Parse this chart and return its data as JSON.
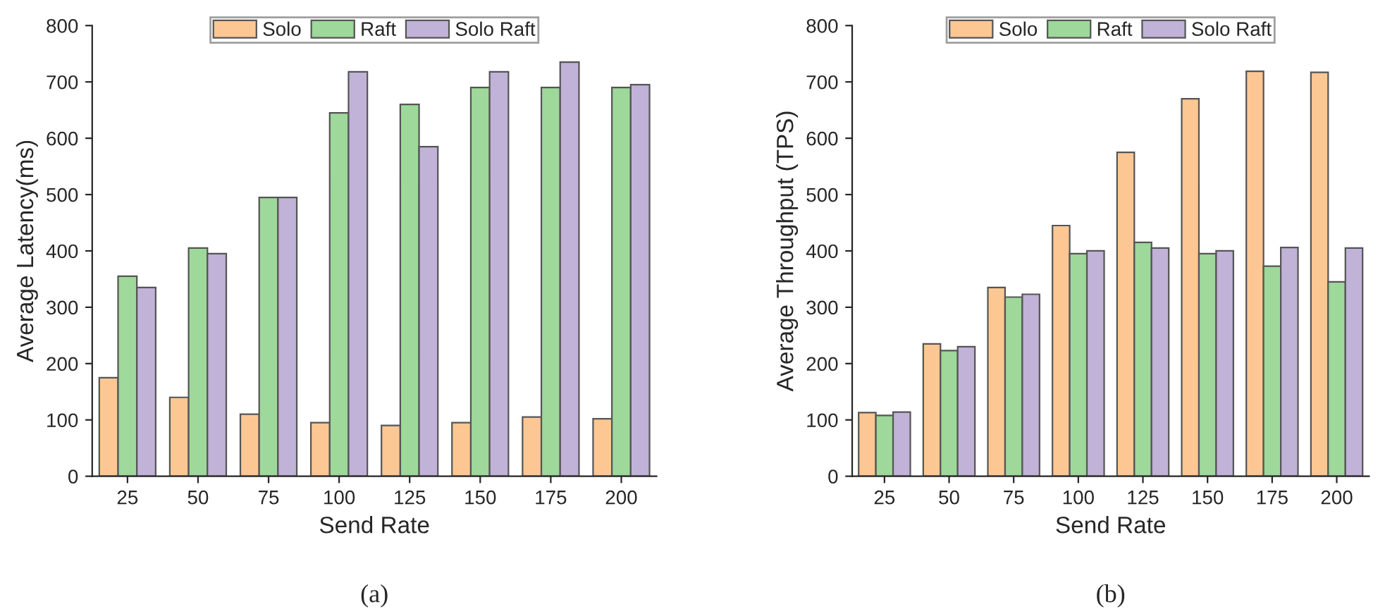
{
  "chart_data": [
    {
      "type": "bar",
      "xlabel": "Send Rate",
      "ylabel": "Average Latency(ms)",
      "categories": [
        "25",
        "50",
        "75",
        "100",
        "125",
        "150",
        "175",
        "200"
      ],
      "series": [
        {
          "name": "Solo",
          "color": "#fdc794",
          "values": [
            175,
            140,
            110,
            95,
            90,
            95,
            105,
            102
          ]
        },
        {
          "name": "Raft",
          "color": "#9ed89b",
          "values": [
            355,
            405,
            495,
            645,
            660,
            690,
            690,
            690
          ]
        },
        {
          "name": "Solo Raft",
          "color": "#c1b2d8",
          "values": [
            335,
            395,
            495,
            718,
            585,
            718,
            735,
            695
          ]
        }
      ],
      "ylim": [
        0,
        800
      ],
      "yticks": [
        0,
        100,
        200,
        300,
        400,
        500,
        600,
        700,
        800
      ],
      "grid": false,
      "legend": "top",
      "annotations": [
        "(a)"
      ]
    },
    {
      "type": "bar",
      "xlabel": "Send Rate",
      "ylabel": "Average Throughput (TPS)",
      "categories": [
        "25",
        "50",
        "75",
        "100",
        "125",
        "150",
        "175",
        "200"
      ],
      "series": [
        {
          "name": "Solo",
          "color": "#fdc794",
          "values": [
            113,
            235,
            335,
            445,
            575,
            670,
            719,
            717
          ]
        },
        {
          "name": "Raft",
          "color": "#9ed89b",
          "values": [
            108,
            223,
            318,
            395,
            415,
            395,
            373,
            345
          ]
        },
        {
          "name": "Solo Raft",
          "color": "#c1b2d8",
          "values": [
            114,
            230,
            323,
            400,
            405,
            400,
            406,
            405
          ]
        }
      ],
      "ylim": [
        0,
        800
      ],
      "yticks": [
        0,
        100,
        200,
        300,
        400,
        500,
        600,
        700,
        800
      ],
      "grid": false,
      "legend": "top",
      "annotations": [
        "(b)"
      ]
    }
  ]
}
